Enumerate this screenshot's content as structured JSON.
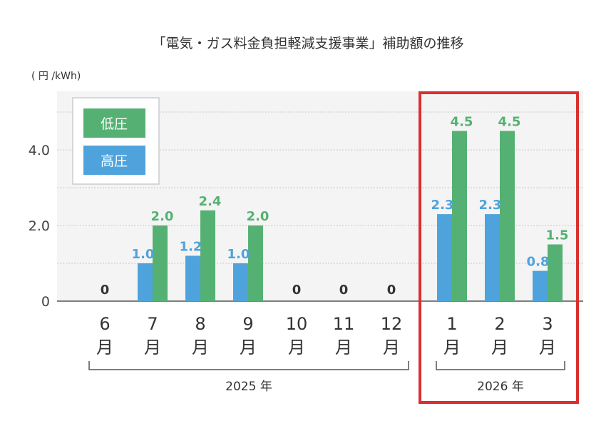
{
  "chart_data": {
    "type": "bar",
    "title": "「電気・ガス料金負担軽減支援事業」補助額の推移",
    "ylabel": "( 円 /kWh)",
    "ylim": [
      0,
      5.5
    ],
    "yticks": [
      {
        "value": 0,
        "label": "0"
      },
      {
        "value": 2,
        "label": "2.0"
      },
      {
        "value": 4,
        "label": "4.0"
      }
    ],
    "gridlines": [
      1,
      2,
      3,
      4,
      5
    ],
    "month_suffix": "月",
    "categories": [
      "6",
      "7",
      "8",
      "9",
      "10",
      "11",
      "12",
      "1",
      "2",
      "3"
    ],
    "series": [
      {
        "name": "高圧",
        "color": "#4fa3dc",
        "values": [
          0,
          1.0,
          1.2,
          1.0,
          0,
          0,
          0,
          2.3,
          2.3,
          0.8
        ],
        "labels": [
          "0",
          "1.0",
          "1.2",
          "1.0",
          "0",
          "0",
          "0",
          "2.3",
          "2.3",
          "0.8"
        ]
      },
      {
        "name": "低圧",
        "color": "#55b173",
        "values": [
          0,
          2.0,
          2.4,
          2.0,
          0,
          0,
          0,
          4.5,
          4.5,
          1.5
        ],
        "labels": [
          "",
          "2.0",
          "2.4",
          "2.0",
          "",
          "",
          "",
          "4.5",
          "4.5",
          "1.5"
        ]
      }
    ],
    "legend": [
      {
        "name": "低圧",
        "color": "#55b173"
      },
      {
        "name": "高圧",
        "color": "#4fa3dc"
      }
    ],
    "year_groups": [
      {
        "label": "2025 年",
        "start": 0,
        "end": 6
      },
      {
        "label": "2026 年",
        "start": 7,
        "end": 9
      }
    ],
    "highlight": {
      "start": 7,
      "end": 9,
      "color": "#d9302f"
    },
    "zero_label_color": "#333333"
  }
}
